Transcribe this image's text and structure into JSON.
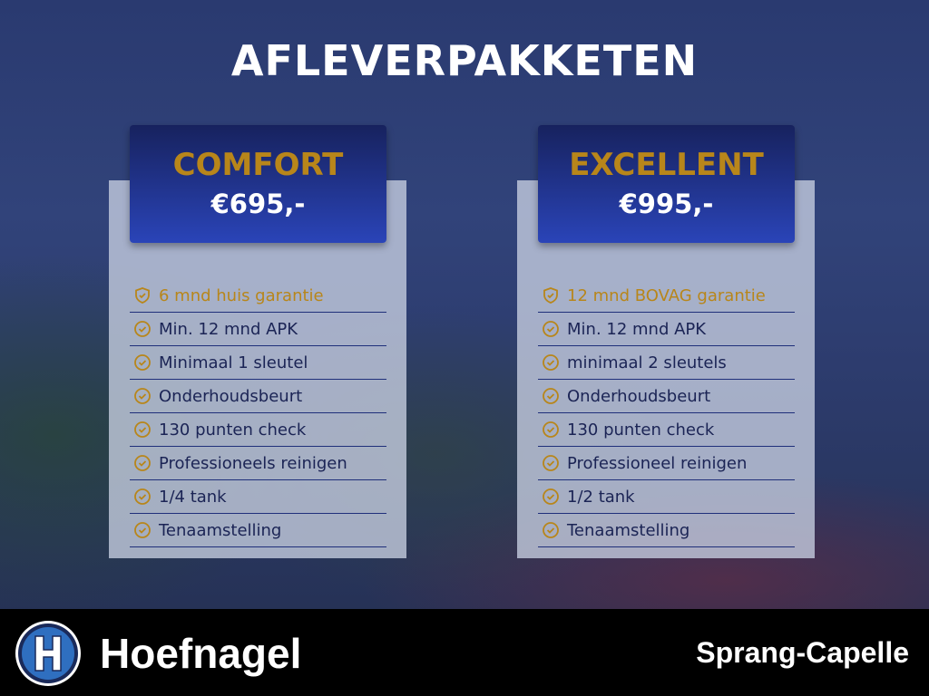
{
  "title": "AFLEVERPAKKETEN",
  "packages": [
    {
      "name": "COMFORT",
      "price": "€695,-",
      "items": [
        "6 mnd huis garantie",
        "Min. 12 mnd APK",
        "Minimaal 1 sleutel",
        "Onderhoudsbeurt",
        "130 punten check",
        "Professioneels reinigen",
        "1/4 tank",
        "Tenaamstelling"
      ]
    },
    {
      "name": "EXCELLENT",
      "price": "€995,-",
      "items": [
        "12 mnd BOVAG garantie",
        "Min. 12 mnd APK",
        "minimaal 2 sleutels",
        "Onderhoudsbeurt",
        "130 punten check",
        "Professioneel reinigen",
        "1/2 tank",
        "Tenaamstelling"
      ]
    }
  ],
  "footer": {
    "brand": "Hoefnagel",
    "location": "Sprang-Capelle",
    "logo_letter": "H"
  },
  "colors": {
    "gold": "#b8861a",
    "navy": "#1b2455",
    "header_top": "#17225e",
    "header_bottom": "#2a44b8"
  }
}
